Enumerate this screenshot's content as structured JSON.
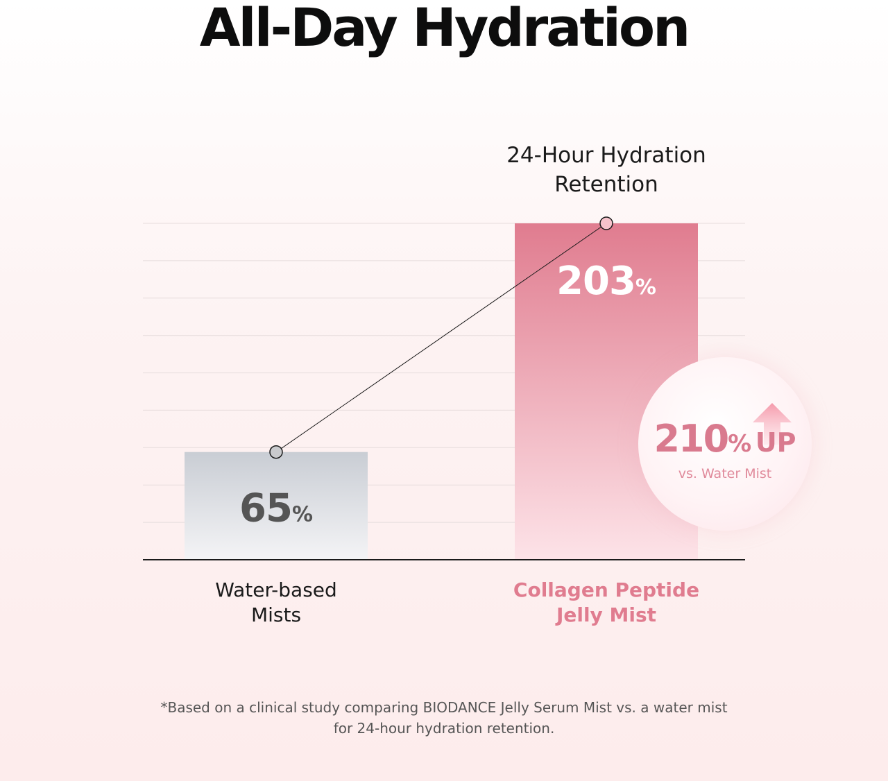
{
  "title": "All-Day Hydration",
  "chart_data": {
    "type": "bar",
    "heading": [
      "24-Hour Hydration",
      "Retention"
    ],
    "categories": [
      [
        "Water-based",
        "Mists"
      ],
      [
        "Collagen Peptide",
        "Jelly Mist"
      ]
    ],
    "values": [
      65,
      203
    ],
    "value_unit": "%",
    "ylim": [
      0,
      203
    ],
    "grid": true,
    "colors": {
      "water_bar_top": "#c9cdd4",
      "water_bar_bottom": "#f4f4f6",
      "jelly_bar_top": "#e07c8f",
      "jelly_bar_bottom": "#fde3e8",
      "water_label": "#555555",
      "jelly_label": "#ffffff",
      "jelly_category": "#e07c8f",
      "water_category": "#1a1a1a"
    }
  },
  "callout": {
    "value": "210",
    "unit": "%",
    "suffix": "UP",
    "subtext": "vs. Water Mist",
    "icon": "up-arrow-icon"
  },
  "footnote": [
    "*Based on a clinical study comparing BIODANCE Jelly Serum Mist vs. a water mist",
    "for 24-hour hydration retention."
  ]
}
